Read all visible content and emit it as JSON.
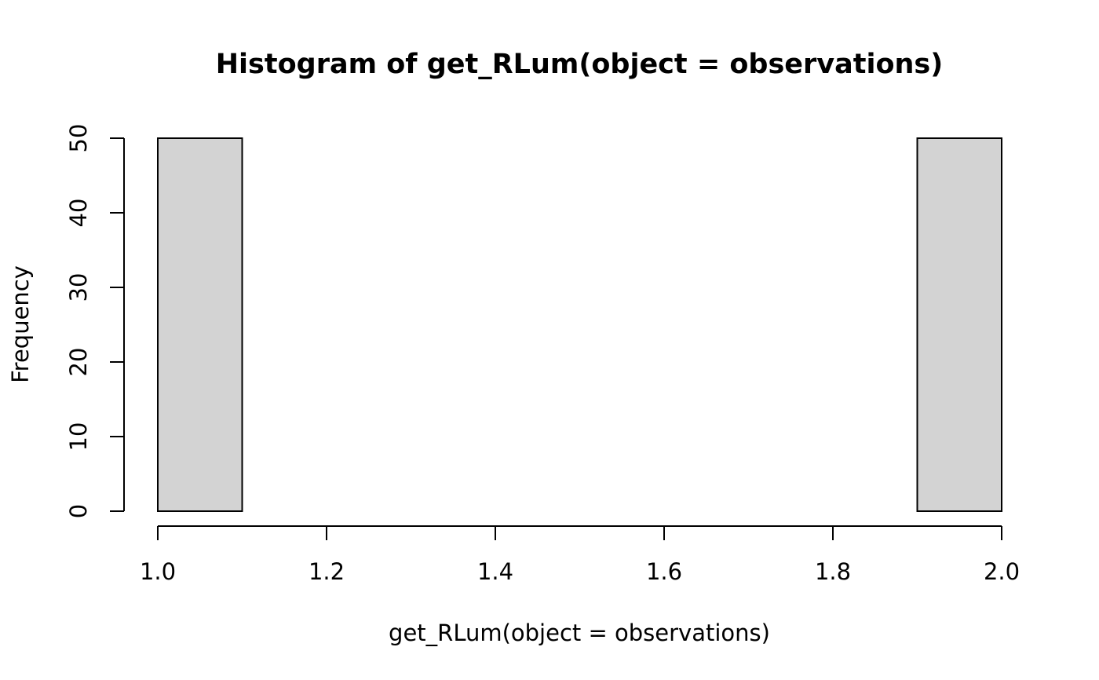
{
  "chart_data": {
    "type": "bar",
    "subtype": "histogram",
    "title": "Histogram of get_RLum(object = observations)",
    "xlabel": "get_RLum(object = observations)",
    "ylabel": "Frequency",
    "bins": [
      {
        "from": 1.0,
        "to": 1.1,
        "count": 50
      },
      {
        "from": 1.1,
        "to": 1.2,
        "count": 0
      },
      {
        "from": 1.2,
        "to": 1.3,
        "count": 0
      },
      {
        "from": 1.3,
        "to": 1.4,
        "count": 0
      },
      {
        "from": 1.4,
        "to": 1.5,
        "count": 0
      },
      {
        "from": 1.5,
        "to": 1.6,
        "count": 0
      },
      {
        "from": 1.6,
        "to": 1.7,
        "count": 0
      },
      {
        "from": 1.7,
        "to": 1.8,
        "count": 0
      },
      {
        "from": 1.8,
        "to": 1.9,
        "count": 0
      },
      {
        "from": 1.9,
        "to": 2.0,
        "count": 50
      }
    ],
    "xlim": [
      1.0,
      2.0
    ],
    "ylim": [
      0,
      50
    ],
    "x_ticks": [
      "1.0",
      "1.2",
      "1.4",
      "1.6",
      "1.8",
      "2.0"
    ],
    "y_ticks": [
      "0",
      "10",
      "20",
      "30",
      "40",
      "50"
    ],
    "bar_fill": "#d3d3d3",
    "bar_stroke": "#000000",
    "grid": false,
    "legend": "none"
  }
}
